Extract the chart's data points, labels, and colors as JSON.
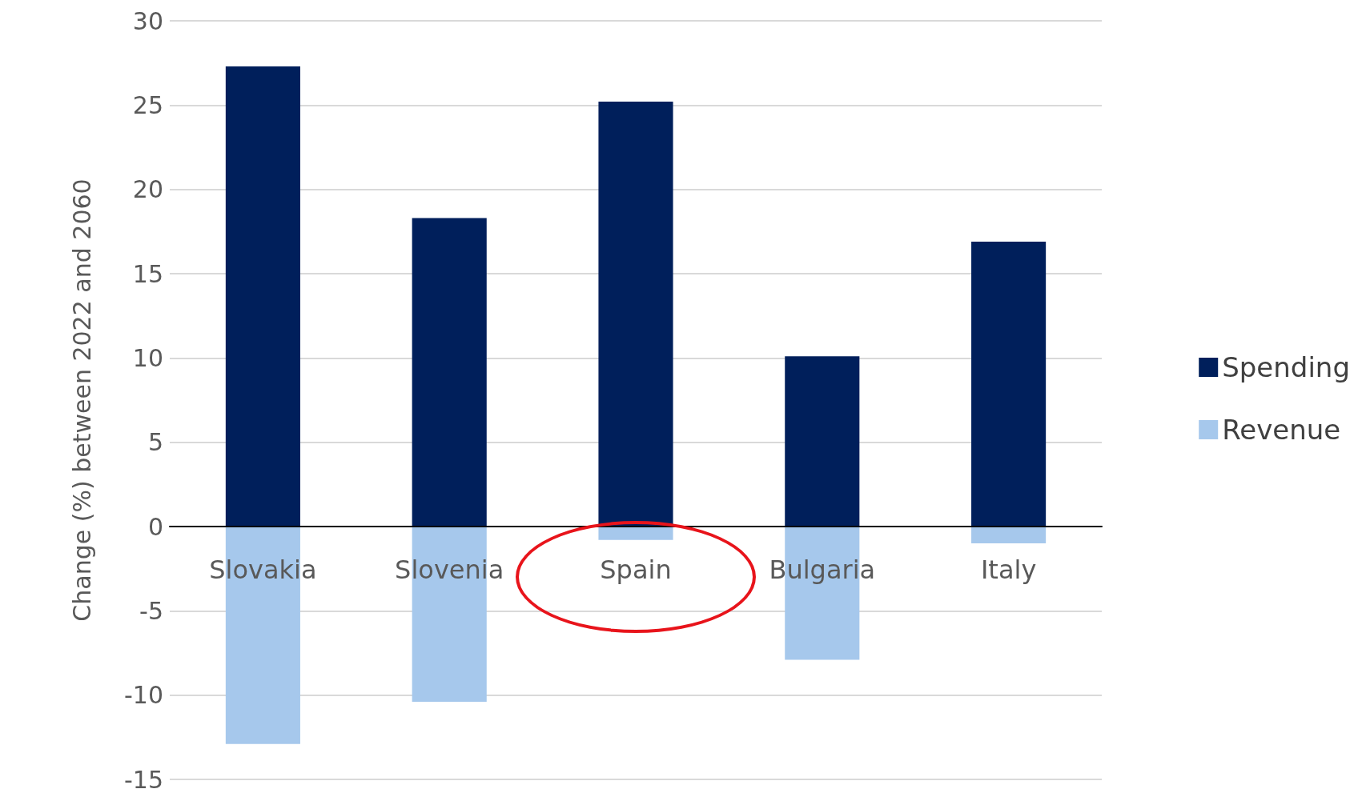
{
  "chart_data": {
    "type": "bar",
    "ylabel": "Change (%) between 2022 and 2060",
    "categories": [
      "Slovakia",
      "Slovenia",
      "Spain",
      "Bulgaria",
      "Italy"
    ],
    "series": [
      {
        "name": "Spending",
        "color": "#001f5b",
        "values": [
          27.3,
          18.3,
          25.2,
          10.1,
          16.9
        ]
      },
      {
        "name": "Revenue",
        "color": "#a6c8ec",
        "values": [
          -12.9,
          -10.4,
          -0.8,
          -7.9,
          -1.0
        ]
      }
    ],
    "stacked": true,
    "ylim": [
      -15,
      30
    ],
    "yticks": [
      -15,
      -10,
      -5,
      0,
      5,
      10,
      15,
      20,
      25,
      30
    ],
    "grid": "y",
    "legend": "right"
  }
}
